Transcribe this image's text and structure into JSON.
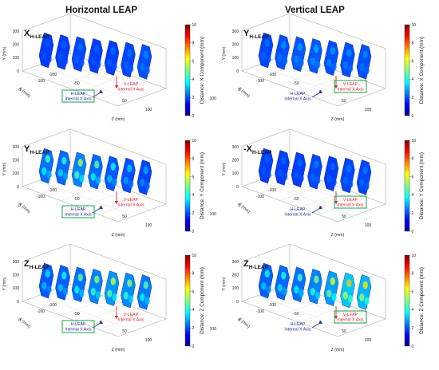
{
  "columns": {
    "left": "Horizontal LEAP",
    "right": "Vertical LEAP"
  },
  "colors": {
    "h_leap": "#1f2f9e",
    "v_leap": "#e0262a",
    "highlight_box": "#18a04a"
  },
  "annotations": {
    "h_leap_line1": "H-LEAP",
    "h_leap_line2": "Internal X Axis",
    "v_leap_line1": "V-LEAP",
    "v_leap_line2": "Internal X Axis"
  },
  "chart_data": [
    {
      "type": "heatmap",
      "panel_label": "X",
      "panel_label_sub": "H-LEAP",
      "x_ticks": [
        "-100",
        "-50",
        "0",
        "50",
        "100"
      ],
      "y_ticks": [
        "0",
        "100",
        "200",
        "300"
      ],
      "depth_ticks": [
        "-100",
        "0",
        "100"
      ],
      "xlabel": "Z (mm)",
      "ylabel": "Y (mm)",
      "depthlabel": "X (mm)",
      "colorbar_label": "Distance: X Component (mm)",
      "colorbar_ticks": [
        "0",
        "2",
        "4",
        "6",
        "8",
        "10"
      ],
      "clim": [
        0,
        10
      ],
      "highlight": "h_leap",
      "slices": [
        {
          "base": 1.0,
          "hot": 0.3
        },
        {
          "base": 1.0,
          "hot": 0.4
        },
        {
          "base": 1.1,
          "hot": 0.5
        },
        {
          "base": 1.0,
          "hot": 0.4
        },
        {
          "base": 1.0,
          "hot": 0.6
        },
        {
          "base": 1.1,
          "hot": 0.5
        },
        {
          "base": 1.2,
          "hot": 0.7
        }
      ]
    },
    {
      "type": "heatmap",
      "panel_label": "Y",
      "panel_label_sub": "H-LEAP",
      "x_ticks": [
        "-100",
        "-50",
        "0",
        "50",
        "100"
      ],
      "y_ticks": [
        "0",
        "100",
        "200",
        "300"
      ],
      "depth_ticks": [
        "-100",
        "0",
        "100"
      ],
      "xlabel": "Z (mm)",
      "ylabel": "Y (mm)",
      "depthlabel": "X (mm)",
      "colorbar_label": "Distance: X Component (mm)",
      "colorbar_ticks": [
        "0",
        "2",
        "4",
        "6",
        "8",
        "10"
      ],
      "clim": [
        0,
        10
      ],
      "highlight": "v_leap",
      "slices": [
        {
          "base": 1.1,
          "hot": 0.5
        },
        {
          "base": 1.2,
          "hot": 0.8
        },
        {
          "base": 1.3,
          "hot": 0.9
        },
        {
          "base": 1.3,
          "hot": 1.0
        },
        {
          "base": 1.2,
          "hot": 0.9
        },
        {
          "base": 1.2,
          "hot": 0.8
        },
        {
          "base": 1.2,
          "hot": 0.7
        }
      ]
    },
    {
      "type": "heatmap",
      "panel_label": "Y",
      "panel_label_sub": "H-LEAP",
      "x_ticks": [
        "-100",
        "-50",
        "0",
        "50",
        "100"
      ],
      "y_ticks": [
        "0",
        "100",
        "200",
        "300"
      ],
      "depth_ticks": [
        "-100",
        "0",
        "100"
      ],
      "xlabel": "Z (mm)",
      "ylabel": "Y (mm)",
      "depthlabel": "X (mm)",
      "colorbar_label": "Distance: Y Component (mm)",
      "colorbar_ticks": [
        "0",
        "2",
        "4",
        "6",
        "8",
        "10"
      ],
      "clim": [
        0,
        10
      ],
      "highlight": "h_leap",
      "slices": [
        {
          "base": 1.6,
          "hot": 2.5
        },
        {
          "base": 1.5,
          "hot": 2.2
        },
        {
          "base": 1.8,
          "hot": 3.5
        },
        {
          "base": 1.5,
          "hot": 2.8
        },
        {
          "base": 1.3,
          "hot": 2.0
        },
        {
          "base": 1.2,
          "hot": 1.5
        },
        {
          "base": 1.1,
          "hot": 1.2
        }
      ]
    },
    {
      "type": "heatmap",
      "panel_label": "-X",
      "panel_label_sub": "H-LEAP",
      "x_ticks": [
        "-100",
        "-50",
        "0",
        "50",
        "100"
      ],
      "y_ticks": [
        "0",
        "100",
        "200",
        "300"
      ],
      "depth_ticks": [
        "-100",
        "0",
        "100"
      ],
      "xlabel": "Z (mm)",
      "ylabel": "Y (mm)",
      "depthlabel": "X (mm)",
      "colorbar_label": "Distance: Y Component (mm)",
      "colorbar_ticks": [
        "0",
        "2",
        "4",
        "6",
        "8",
        "10"
      ],
      "clim": [
        0,
        10
      ],
      "highlight": "v_leap",
      "slices": [
        {
          "base": 1.0,
          "hot": 0.4
        },
        {
          "base": 1.0,
          "hot": 0.5
        },
        {
          "base": 1.0,
          "hot": 0.5
        },
        {
          "base": 1.1,
          "hot": 0.6
        },
        {
          "base": 1.0,
          "hot": 0.5
        },
        {
          "base": 1.1,
          "hot": 0.6
        },
        {
          "base": 1.1,
          "hot": 0.6
        }
      ]
    },
    {
      "type": "heatmap",
      "panel_label": "Z",
      "panel_label_sub": "H-LEAP",
      "x_ticks": [
        "-100",
        "-50",
        "0",
        "50",
        "100"
      ],
      "y_ticks": [
        "0",
        "100",
        "200",
        "300"
      ],
      "depth_ticks": [
        "-100",
        "0",
        "100"
      ],
      "xlabel": "Z (mm)",
      "ylabel": "Y (mm)",
      "depthlabel": "X (mm)",
      "colorbar_label": "Distance: Z Component (mm)",
      "colorbar_ticks": [
        "0",
        "2",
        "4",
        "6",
        "8",
        "10"
      ],
      "clim": [
        0,
        10
      ],
      "highlight": "h_leap",
      "slices": [
        {
          "base": 1.3,
          "hot": 1.8
        },
        {
          "base": 1.4,
          "hot": 2.0
        },
        {
          "base": 1.6,
          "hot": 2.8
        },
        {
          "base": 1.8,
          "hot": 3.2
        },
        {
          "base": 2.0,
          "hot": 3.5
        },
        {
          "base": 1.9,
          "hot": 3.0
        },
        {
          "base": 1.7,
          "hot": 2.6
        }
      ]
    },
    {
      "type": "heatmap",
      "panel_label": "Z",
      "panel_label_sub": "H-LEAP",
      "x_ticks": [
        "-100",
        "-50",
        "0",
        "50",
        "100"
      ],
      "y_ticks": [
        "0",
        "100",
        "200",
        "300"
      ],
      "depth_ticks": [
        "-100",
        "0",
        "100"
      ],
      "xlabel": "Z (mm)",
      "ylabel": "Y (mm)",
      "depthlabel": "X (mm)",
      "colorbar_label": "Distance: Z Component (mm)",
      "colorbar_ticks": [
        "0",
        "2",
        "4",
        "6",
        "8",
        "10"
      ],
      "clim": [
        0,
        10
      ],
      "highlight": "v_leap",
      "slices": [
        {
          "base": 1.4,
          "hot": 2.0
        },
        {
          "base": 1.5,
          "hot": 2.2
        },
        {
          "base": 1.6,
          "hot": 2.6
        },
        {
          "base": 1.8,
          "hot": 3.0
        },
        {
          "base": 2.1,
          "hot": 3.8
        },
        {
          "base": 2.6,
          "hot": 4.2
        },
        {
          "base": 2.4,
          "hot": 4.0
        }
      ]
    }
  ]
}
